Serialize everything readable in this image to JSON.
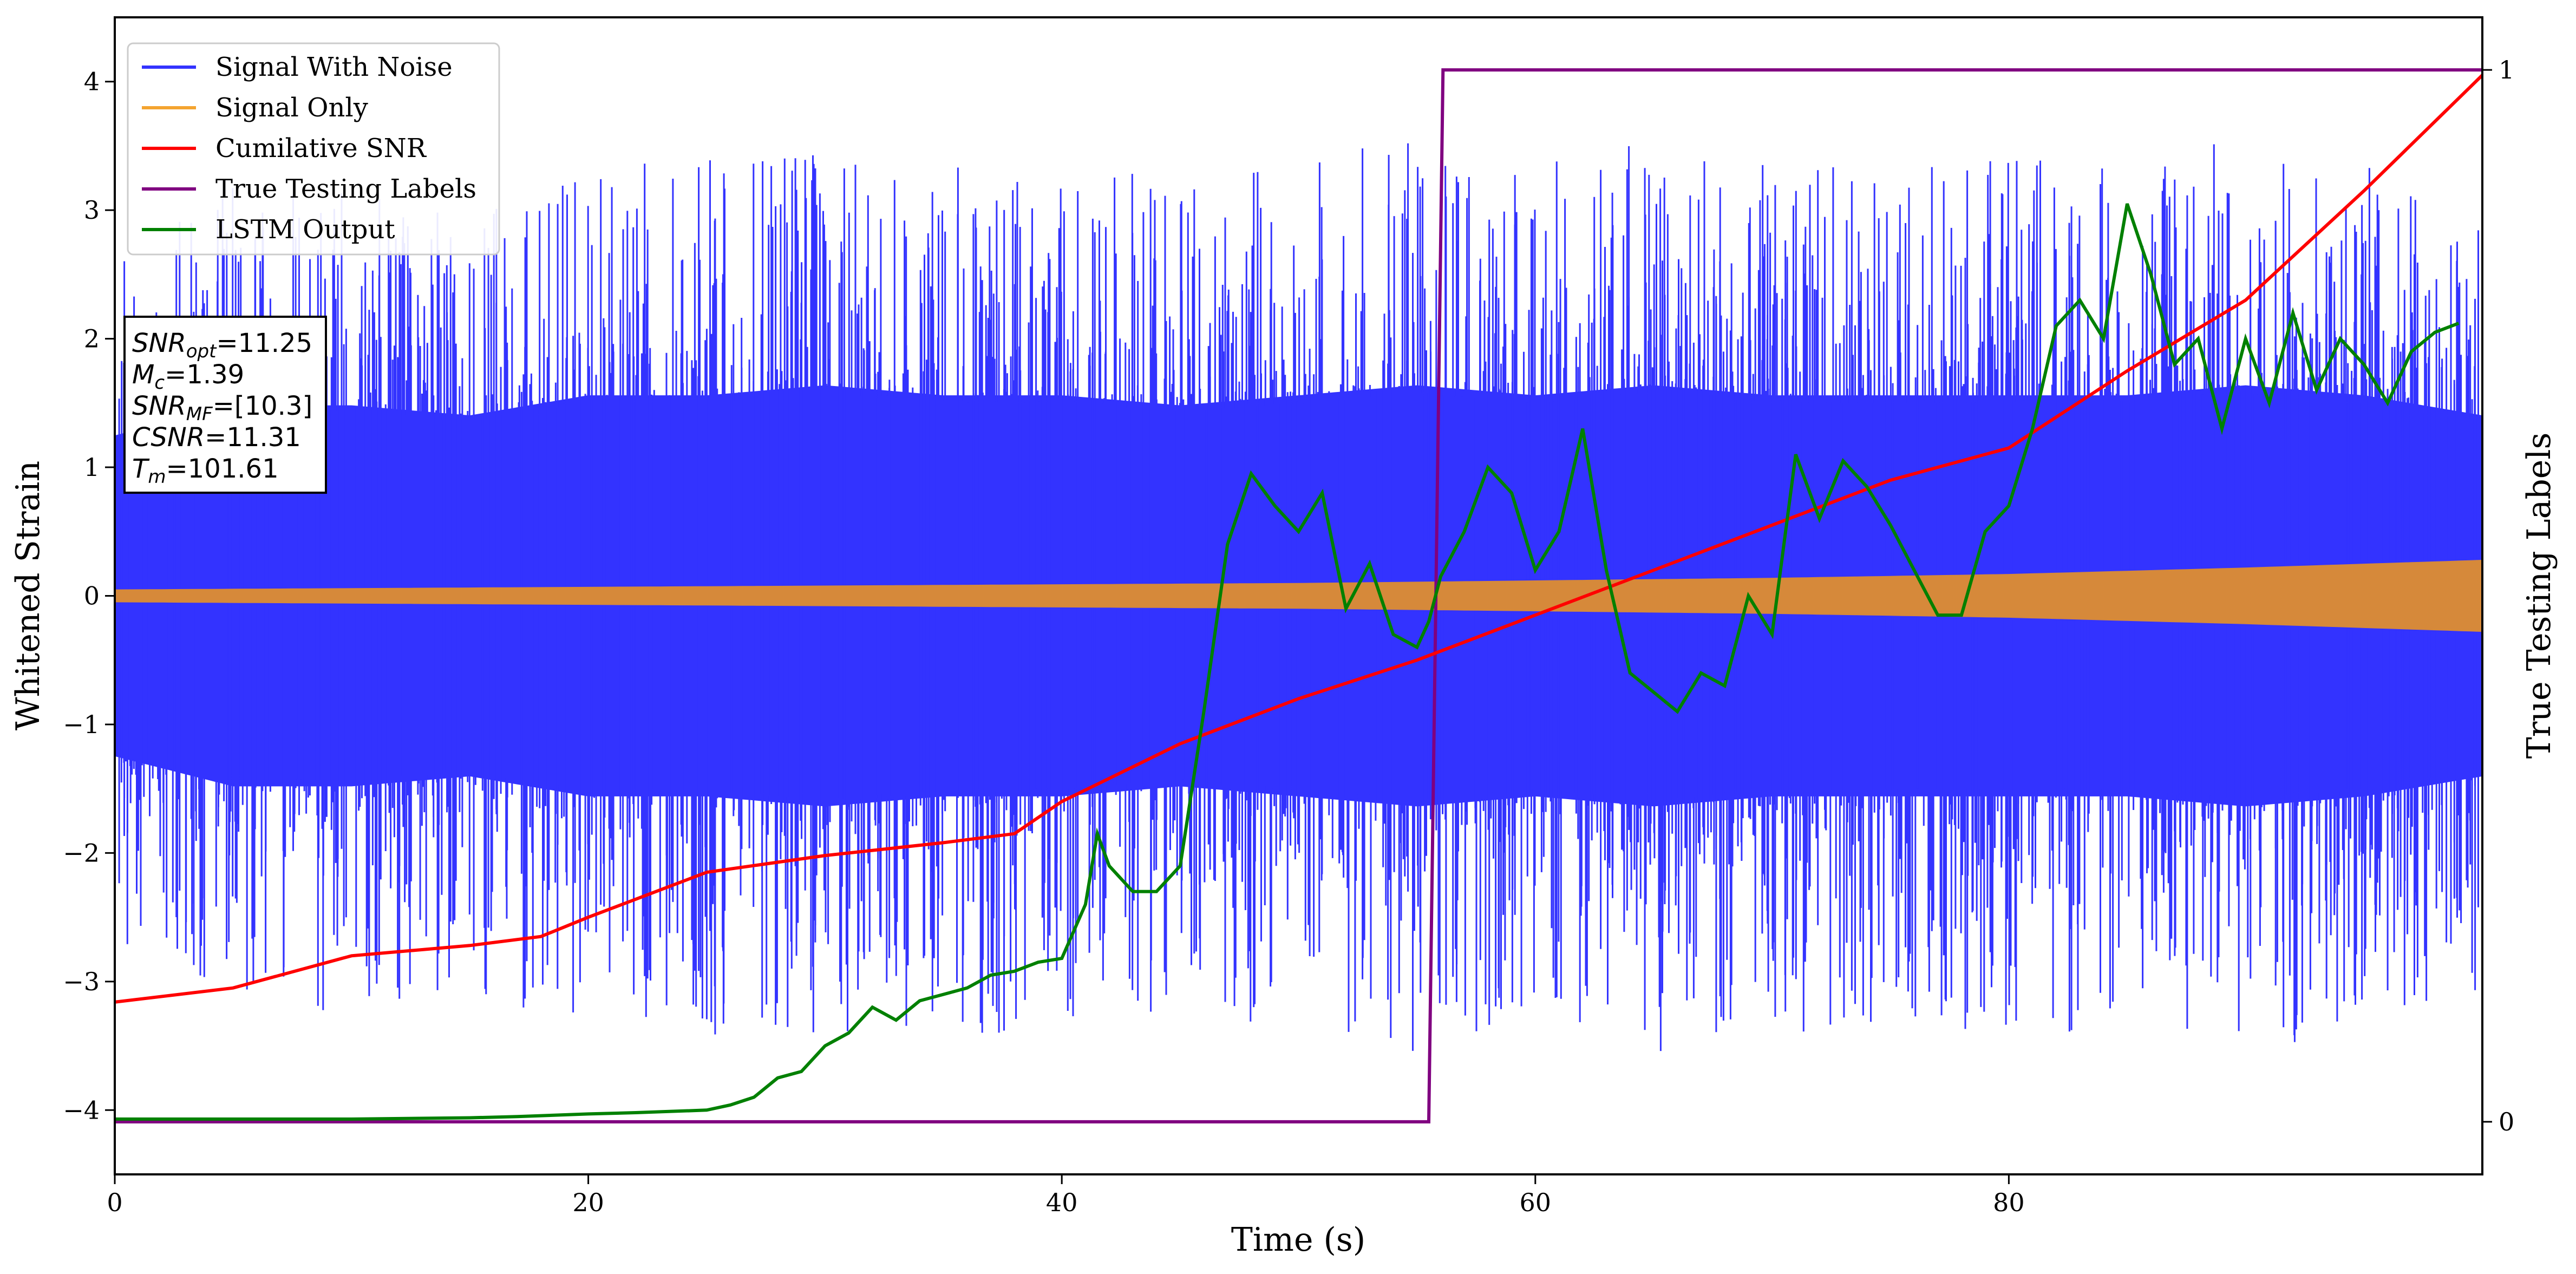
{
  "chart_data": {
    "type": "line",
    "xlabel": "Time (s)",
    "ylabel": "Whitened Strain",
    "y2label": "True Testing Labels",
    "xlim": [
      0,
      100
    ],
    "ylim": [
      -4.5,
      4.5
    ],
    "y2lim": [
      -0.05,
      1.05
    ],
    "xticks": [
      "0",
      "20",
      "40",
      "60",
      "80"
    ],
    "yticks": [
      "−4",
      "−3",
      "−2",
      "−1",
      "0",
      "1",
      "2",
      "3",
      "4"
    ],
    "y2ticks": [
      "0",
      "1"
    ],
    "grid": false,
    "legend_position": "top-left",
    "series": [
      {
        "name": "Signal With Noise",
        "color": "#3333ff",
        "axis": "left",
        "style": "dense noise, approx. range −3.6 to 3.9",
        "x": [
          0,
          5,
          10,
          15,
          20,
          25,
          30,
          35,
          40,
          45,
          50,
          55,
          60,
          65,
          70,
          75,
          80,
          85,
          90,
          95,
          100
        ],
        "y_upper": [
          1.6,
          1.9,
          1.9,
          1.8,
          2.0,
          2.0,
          2.1,
          2.0,
          2.0,
          1.9,
          2.0,
          2.1,
          2.0,
          2.1,
          2.0,
          2.0,
          2.0,
          2.0,
          2.1,
          2.0,
          1.8
        ],
        "y_lower": [
          -1.6,
          -1.9,
          -1.9,
          -1.8,
          -2.0,
          -2.0,
          -2.1,
          -2.0,
          -2.0,
          -1.9,
          -2.0,
          -2.1,
          -2.0,
          -2.1,
          -2.0,
          -2.0,
          -2.0,
          -2.0,
          -2.1,
          -2.0,
          -1.8
        ]
      },
      {
        "name": "Signal Only",
        "color": "#f4a430",
        "axis": "left",
        "x": [
          0,
          10,
          20,
          30,
          40,
          50,
          60,
          70,
          80,
          90,
          100
        ],
        "amplitude": [
          0.05,
          0.06,
          0.07,
          0.08,
          0.09,
          0.1,
          0.12,
          0.14,
          0.17,
          0.22,
          0.28
        ]
      },
      {
        "name": "Cumilative SNR",
        "color": "#ff0000",
        "axis": "left",
        "x": [
          0,
          5,
          10,
          15,
          18,
          20,
          25,
          30,
          35,
          38,
          40,
          45,
          50,
          55,
          60,
          65,
          70,
          75,
          80,
          85,
          90,
          95,
          100
        ],
        "y": [
          -3.16,
          -3.05,
          -2.8,
          -2.72,
          -2.65,
          -2.5,
          -2.15,
          -2.02,
          -1.92,
          -1.85,
          -1.6,
          -1.15,
          -0.8,
          -0.5,
          -0.15,
          0.2,
          0.55,
          0.9,
          1.15,
          1.75,
          2.3,
          3.15,
          4.05
        ]
      },
      {
        "name": "True Testing Labels",
        "color": "#800080",
        "axis": "right",
        "x": [
          0,
          55.5,
          56.1,
          100
        ],
        "y": [
          0,
          0,
          1,
          1
        ]
      },
      {
        "name": "LSTM Output",
        "color": "#008000",
        "axis": "left",
        "x": [
          0,
          10,
          15,
          17,
          20,
          22,
          25,
          26,
          27,
          28,
          29,
          30,
          31,
          32,
          33,
          34,
          35,
          36,
          37,
          38,
          39,
          40,
          41,
          41.5,
          42,
          43,
          44,
          45,
          46,
          47,
          48,
          49,
          50,
          51,
          52,
          53,
          54,
          55,
          55.5,
          56,
          57,
          58,
          59,
          60,
          61,
          62,
          63,
          64,
          65,
          66,
          67,
          68,
          69,
          70,
          71,
          72,
          73,
          74,
          75,
          76,
          77,
          78,
          79,
          80,
          81,
          82,
          83,
          84,
          85,
          86,
          87,
          88,
          89,
          90,
          91,
          92,
          93,
          94,
          95,
          96,
          97,
          98,
          99
        ],
        "y": [
          -4.07,
          -4.07,
          -4.06,
          -4.05,
          -4.03,
          -4.02,
          -4.0,
          -3.96,
          -3.9,
          -3.75,
          -3.7,
          -3.5,
          -3.4,
          -3.2,
          -3.3,
          -3.15,
          -3.1,
          -3.05,
          -2.95,
          -2.92,
          -2.85,
          -2.82,
          -2.4,
          -1.85,
          -2.1,
          -2.3,
          -2.3,
          -2.1,
          -0.9,
          0.4,
          0.95,
          0.7,
          0.5,
          0.8,
          -0.1,
          0.25,
          -0.3,
          -0.4,
          -0.2,
          0.15,
          0.5,
          1.0,
          0.8,
          0.2,
          0.5,
          1.3,
          0.2,
          -0.6,
          -0.75,
          -0.9,
          -0.6,
          -0.7,
          0.0,
          -0.3,
          1.1,
          0.6,
          1.05,
          0.85,
          0.55,
          0.2,
          -0.15,
          -0.15,
          0.5,
          0.7,
          1.3,
          2.1,
          2.3,
          2.0,
          3.05,
          2.5,
          1.8,
          2.0,
          1.3,
          2.0,
          1.5,
          2.2,
          1.6,
          2.0,
          1.8,
          1.5,
          1.9,
          2.05,
          2.12
        ]
      }
    ],
    "annotation": {
      "lines": [
        {
          "var": "SNR",
          "sub": "opt",
          "value": "=11.25"
        },
        {
          "var": "M",
          "sub": "c",
          "value": "=1.39"
        },
        {
          "var": "SNR",
          "sub": "MF",
          "value": "=[10.3]"
        },
        {
          "var": "CSNR",
          "sub": "",
          "value": "=11.31"
        },
        {
          "var": "T",
          "sub": "m",
          "value": "=101.61"
        }
      ]
    }
  }
}
